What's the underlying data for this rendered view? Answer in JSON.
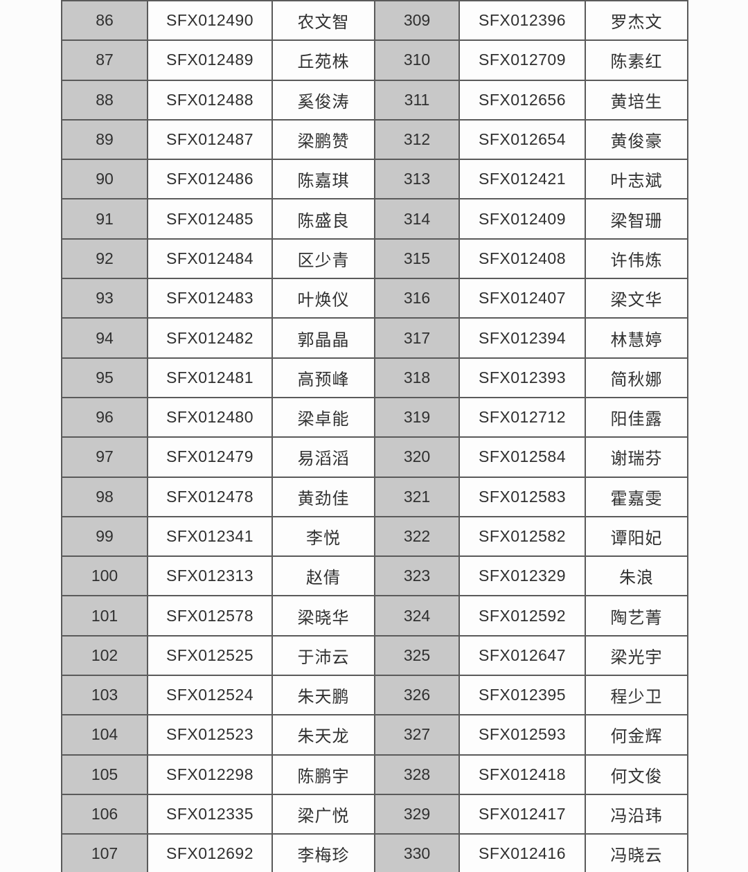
{
  "colors": {
    "row_number_bg": "#c8c8c8",
    "cell_bg": "#fdfdfd",
    "border": "#5a5a5a",
    "text": "#303030"
  },
  "table": {
    "columns": [
      "number",
      "code",
      "name",
      "number",
      "code",
      "name"
    ],
    "rows": [
      {
        "left": {
          "num": "86",
          "code": "SFX012490",
          "name": "农文智"
        },
        "right": {
          "num": "309",
          "code": "SFX012396",
          "name": "罗杰文"
        }
      },
      {
        "left": {
          "num": "87",
          "code": "SFX012489",
          "name": "丘苑株"
        },
        "right": {
          "num": "310",
          "code": "SFX012709",
          "name": "陈素红"
        }
      },
      {
        "left": {
          "num": "88",
          "code": "SFX012488",
          "name": "奚俊涛"
        },
        "right": {
          "num": "311",
          "code": "SFX012656",
          "name": "黄培生"
        }
      },
      {
        "left": {
          "num": "89",
          "code": "SFX012487",
          "name": "梁鹏赞"
        },
        "right": {
          "num": "312",
          "code": "SFX012654",
          "name": "黄俊豪"
        }
      },
      {
        "left": {
          "num": "90",
          "code": "SFX012486",
          "name": "陈嘉琪"
        },
        "right": {
          "num": "313",
          "code": "SFX012421",
          "name": "叶志斌"
        }
      },
      {
        "left": {
          "num": "91",
          "code": "SFX012485",
          "name": "陈盛良"
        },
        "right": {
          "num": "314",
          "code": "SFX012409",
          "name": "梁智珊"
        }
      },
      {
        "left": {
          "num": "92",
          "code": "SFX012484",
          "name": "区少青"
        },
        "right": {
          "num": "315",
          "code": "SFX012408",
          "name": "许伟炼"
        }
      },
      {
        "left": {
          "num": "93",
          "code": "SFX012483",
          "name": "叶焕仪"
        },
        "right": {
          "num": "316",
          "code": "SFX012407",
          "name": "梁文华"
        }
      },
      {
        "left": {
          "num": "94",
          "code": "SFX012482",
          "name": "郭晶晶"
        },
        "right": {
          "num": "317",
          "code": "SFX012394",
          "name": "林慧婷"
        }
      },
      {
        "left": {
          "num": "95",
          "code": "SFX012481",
          "name": "高预峰"
        },
        "right": {
          "num": "318",
          "code": "SFX012393",
          "name": "简秋娜"
        }
      },
      {
        "left": {
          "num": "96",
          "code": "SFX012480",
          "name": "梁卓能"
        },
        "right": {
          "num": "319",
          "code": "SFX012712",
          "name": "阳佳露"
        }
      },
      {
        "left": {
          "num": "97",
          "code": "SFX012479",
          "name": "易滔滔"
        },
        "right": {
          "num": "320",
          "code": "SFX012584",
          "name": "谢瑞芬"
        }
      },
      {
        "left": {
          "num": "98",
          "code": "SFX012478",
          "name": "黄劲佳"
        },
        "right": {
          "num": "321",
          "code": "SFX012583",
          "name": "霍嘉雯"
        }
      },
      {
        "left": {
          "num": "99",
          "code": "SFX012341",
          "name": "李悦"
        },
        "right": {
          "num": "322",
          "code": "SFX012582",
          "name": "谭阳妃"
        }
      },
      {
        "left": {
          "num": "100",
          "code": "SFX012313",
          "name": "赵倩"
        },
        "right": {
          "num": "323",
          "code": "SFX012329",
          "name": "朱浪"
        }
      },
      {
        "left": {
          "num": "101",
          "code": "SFX012578",
          "name": "梁晓华"
        },
        "right": {
          "num": "324",
          "code": "SFX012592",
          "name": "陶艺菁"
        }
      },
      {
        "left": {
          "num": "102",
          "code": "SFX012525",
          "name": "于沛云"
        },
        "right": {
          "num": "325",
          "code": "SFX012647",
          "name": "梁光宇"
        }
      },
      {
        "left": {
          "num": "103",
          "code": "SFX012524",
          "name": "朱天鹏"
        },
        "right": {
          "num": "326",
          "code": "SFX012395",
          "name": "程少卫"
        }
      },
      {
        "left": {
          "num": "104",
          "code": "SFX012523",
          "name": "朱天龙"
        },
        "right": {
          "num": "327",
          "code": "SFX012593",
          "name": "何金辉"
        }
      },
      {
        "left": {
          "num": "105",
          "code": "SFX012298",
          "name": "陈鹏宇"
        },
        "right": {
          "num": "328",
          "code": "SFX012418",
          "name": "何文俊"
        }
      },
      {
        "left": {
          "num": "106",
          "code": "SFX012335",
          "name": "梁广悦"
        },
        "right": {
          "num": "329",
          "code": "SFX012417",
          "name": "冯沿玮"
        }
      },
      {
        "left": {
          "num": "107",
          "code": "SFX012692",
          "name": "李梅珍"
        },
        "right": {
          "num": "330",
          "code": "SFX012416",
          "name": "冯晓云"
        }
      }
    ]
  }
}
